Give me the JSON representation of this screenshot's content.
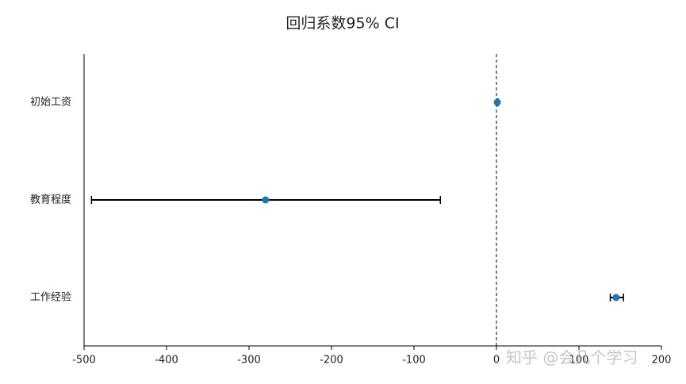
{
  "chart_data": {
    "type": "coefplot",
    "title": "回归系数95% CI",
    "categories": [
      "初始工资",
      "教育程度",
      "工作经验"
    ],
    "values": [
      1,
      -280,
      145
    ],
    "lower": [
      0,
      -491,
      138
    ],
    "upper": [
      2,
      -68,
      154
    ],
    "color": "#1f77b4",
    "reference_line": 0,
    "xlim": [
      -500,
      200
    ],
    "xticks": [
      -500,
      -400,
      -300,
      -200,
      -100,
      0,
      100,
      200
    ],
    "watermark": "知乎 @会几个学习"
  }
}
